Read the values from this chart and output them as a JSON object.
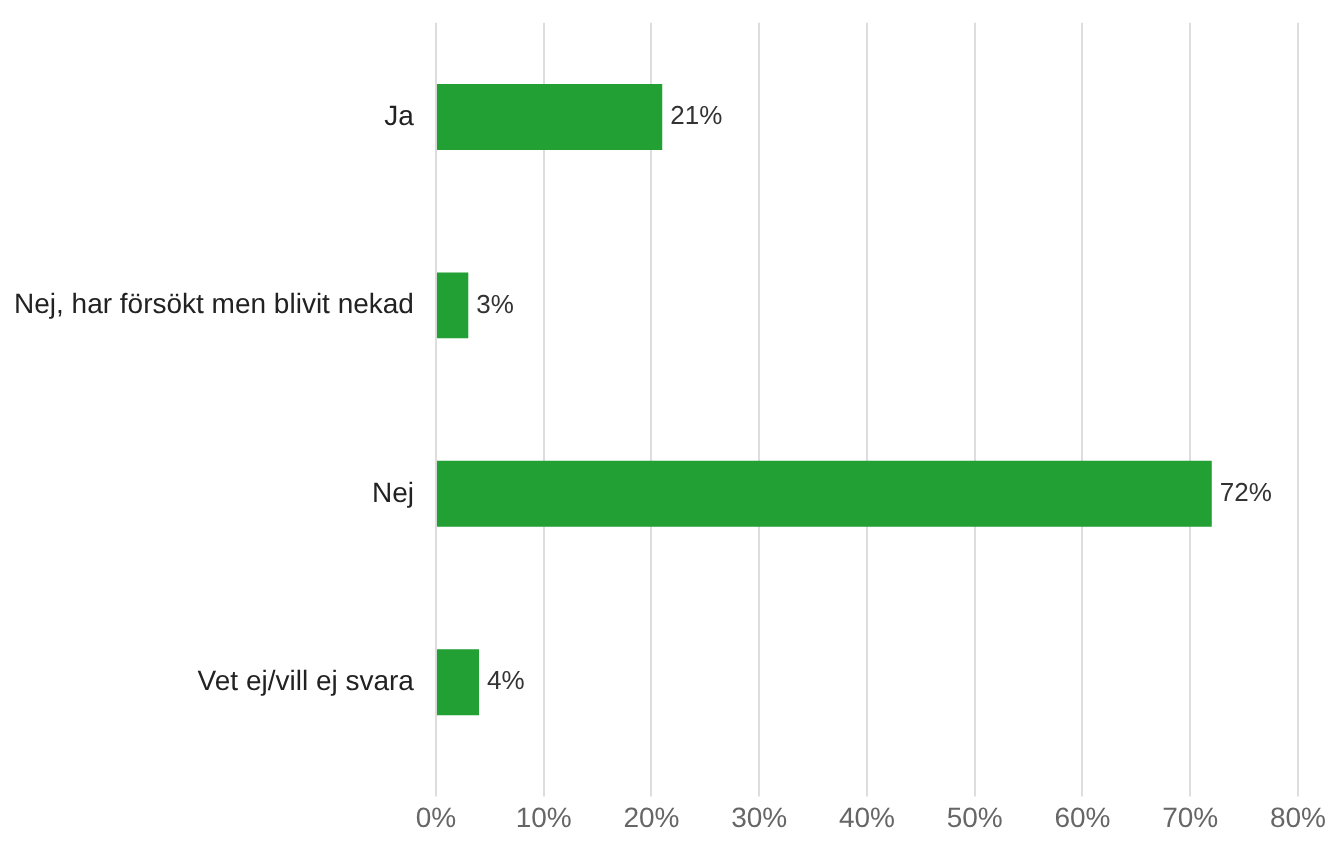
{
  "chart_data": {
    "type": "bar",
    "orientation": "horizontal",
    "categories": [
      "Ja",
      "Nej, har försökt men blivit nekad",
      "Nej",
      "Vet ej/vill ej svara"
    ],
    "values": [
      21,
      3,
      72,
      4
    ],
    "value_labels": [
      "21%",
      "3%",
      "72%",
      "4%"
    ],
    "color": "#22a034",
    "xlim": [
      0,
      80
    ],
    "xticks": [
      {
        "value": 0,
        "label": "0%"
      },
      {
        "value": 10,
        "label": "10%"
      },
      {
        "value": 20,
        "label": "20%"
      },
      {
        "value": 30,
        "label": "30%"
      },
      {
        "value": 40,
        "label": "40%"
      },
      {
        "value": 50,
        "label": "50%"
      },
      {
        "value": 60,
        "label": "60%"
      },
      {
        "value": 70,
        "label": "70%"
      },
      {
        "value": 80,
        "label": "80%"
      }
    ],
    "grid": "x",
    "legend": false
  }
}
